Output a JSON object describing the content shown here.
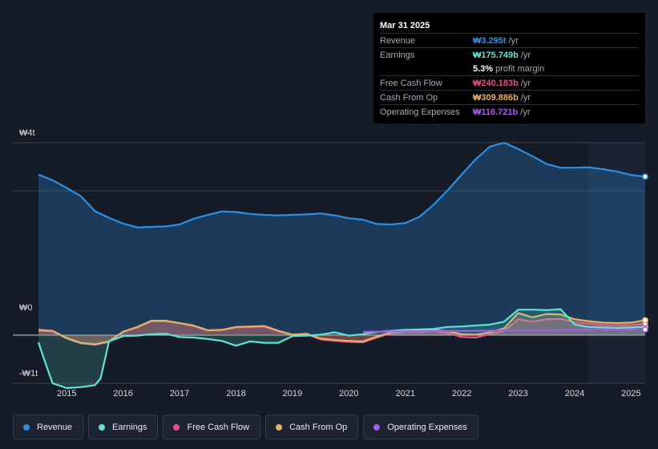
{
  "chart_data": {
    "type": "area",
    "y_ticks": [
      {
        "label": "₩4t",
        "value": 4000
      },
      {
        "label": "₩0",
        "value": 0
      },
      {
        "label": "-₩1t",
        "value": -1000
      }
    ],
    "ylim": [
      -1000,
      4000
    ],
    "xlim": [
      2014.5,
      2025.25
    ],
    "x_ticks": [
      "2015",
      "2016",
      "2017",
      "2018",
      "2019",
      "2020",
      "2021",
      "2022",
      "2023",
      "2024",
      "2025"
    ],
    "x_tick_values": [
      2015,
      2016,
      2017,
      2018,
      2019,
      2020,
      2021,
      2022,
      2023,
      2024,
      2025
    ],
    "forecast_start": 2024.25,
    "series": [
      {
        "name": "Revenue",
        "color": "#2d8fe3",
        "points": [
          [
            2014.5,
            3340
          ],
          [
            2014.75,
            3220
          ],
          [
            2015.0,
            3060
          ],
          [
            2015.25,
            2890
          ],
          [
            2015.5,
            2580
          ],
          [
            2015.75,
            2440
          ],
          [
            2016.0,
            2320
          ],
          [
            2016.25,
            2240
          ],
          [
            2016.5,
            2250
          ],
          [
            2016.75,
            2260
          ],
          [
            2017.0,
            2300
          ],
          [
            2017.25,
            2420
          ],
          [
            2017.5,
            2500
          ],
          [
            2017.75,
            2570
          ],
          [
            2018.0,
            2560
          ],
          [
            2018.25,
            2520
          ],
          [
            2018.5,
            2500
          ],
          [
            2018.75,
            2490
          ],
          [
            2019.0,
            2500
          ],
          [
            2019.25,
            2510
          ],
          [
            2019.5,
            2530
          ],
          [
            2019.75,
            2490
          ],
          [
            2020.0,
            2430
          ],
          [
            2020.25,
            2400
          ],
          [
            2020.5,
            2310
          ],
          [
            2020.75,
            2300
          ],
          [
            2021.0,
            2330
          ],
          [
            2021.25,
            2460
          ],
          [
            2021.5,
            2710
          ],
          [
            2021.75,
            3010
          ],
          [
            2022.0,
            3340
          ],
          [
            2022.25,
            3660
          ],
          [
            2022.5,
            3920
          ],
          [
            2022.75,
            4000
          ],
          [
            2023.0,
            3870
          ],
          [
            2023.25,
            3720
          ],
          [
            2023.5,
            3560
          ],
          [
            2023.75,
            3480
          ],
          [
            2024.0,
            3480
          ],
          [
            2024.25,
            3490
          ],
          [
            2024.5,
            3450
          ],
          [
            2024.75,
            3400
          ],
          [
            2025.0,
            3330
          ],
          [
            2025.25,
            3295
          ]
        ]
      },
      {
        "name": "Earnings",
        "color": "#5fe3d3",
        "points": [
          [
            2014.5,
            -150
          ],
          [
            2014.6,
            -500
          ],
          [
            2014.75,
            -1000
          ],
          [
            2015.0,
            -1100
          ],
          [
            2015.25,
            -1080
          ],
          [
            2015.5,
            -1040
          ],
          [
            2015.6,
            -900
          ],
          [
            2015.75,
            -130
          ],
          [
            2016.0,
            -20
          ],
          [
            2016.25,
            -10
          ],
          [
            2016.5,
            20
          ],
          [
            2016.75,
            30
          ],
          [
            2017.0,
            -40
          ],
          [
            2017.25,
            -50
          ],
          [
            2017.5,
            -80
          ],
          [
            2017.75,
            -120
          ],
          [
            2018.0,
            -220
          ],
          [
            2018.25,
            -130
          ],
          [
            2018.5,
            -160
          ],
          [
            2018.75,
            -160
          ],
          [
            2019.0,
            -20
          ],
          [
            2019.25,
            -10
          ],
          [
            2019.5,
            10
          ],
          [
            2019.75,
            60
          ],
          [
            2020.0,
            -10
          ],
          [
            2020.25,
            20
          ],
          [
            2020.5,
            70
          ],
          [
            2020.75,
            90
          ],
          [
            2021.0,
            110
          ],
          [
            2021.25,
            120
          ],
          [
            2021.5,
            130
          ],
          [
            2021.75,
            170
          ],
          [
            2022.0,
            180
          ],
          [
            2022.25,
            200
          ],
          [
            2022.5,
            220
          ],
          [
            2022.75,
            280
          ],
          [
            2023.0,
            530
          ],
          [
            2023.25,
            530
          ],
          [
            2023.5,
            520
          ],
          [
            2023.75,
            540
          ],
          [
            2024.0,
            220
          ],
          [
            2024.25,
            170
          ],
          [
            2024.5,
            160
          ],
          [
            2024.75,
            150
          ],
          [
            2025.0,
            160
          ],
          [
            2025.25,
            175.749
          ]
        ]
      },
      {
        "name": "Free Cash Flow",
        "color": "#e0508b",
        "points": [
          [
            2014.5,
            90
          ],
          [
            2014.75,
            80
          ],
          [
            2015.0,
            -70
          ],
          [
            2015.25,
            -170
          ],
          [
            2015.5,
            -200
          ],
          [
            2015.75,
            -140
          ],
          [
            2016.0,
            70
          ],
          [
            2016.25,
            160
          ],
          [
            2016.5,
            290
          ],
          [
            2016.75,
            290
          ],
          [
            2017.0,
            250
          ],
          [
            2017.25,
            190
          ],
          [
            2017.5,
            100
          ],
          [
            2017.75,
            110
          ],
          [
            2018.0,
            160
          ],
          [
            2018.25,
            170
          ],
          [
            2018.5,
            180
          ],
          [
            2018.75,
            80
          ],
          [
            2019.0,
            10
          ],
          [
            2019.25,
            20
          ],
          [
            2019.5,
            -90
          ],
          [
            2019.75,
            -120
          ],
          [
            2020.0,
            -140
          ],
          [
            2020.25,
            -150
          ],
          [
            2020.5,
            -50
          ],
          [
            2020.75,
            40
          ],
          [
            2021.0,
            60
          ],
          [
            2021.25,
            60
          ],
          [
            2021.5,
            80
          ],
          [
            2021.75,
            40
          ],
          [
            2022.0,
            -40
          ],
          [
            2022.25,
            -50
          ],
          [
            2022.5,
            20
          ],
          [
            2022.75,
            80
          ],
          [
            2023.0,
            330
          ],
          [
            2023.25,
            280
          ],
          [
            2023.5,
            330
          ],
          [
            2023.75,
            340
          ],
          [
            2024.0,
            270
          ],
          [
            2024.25,
            240
          ],
          [
            2024.5,
            210
          ],
          [
            2024.75,
            200
          ],
          [
            2025.0,
            210
          ],
          [
            2025.25,
            240.183
          ]
        ]
      },
      {
        "name": "Cash From Op",
        "color": "#e8b067",
        "points": [
          [
            2014.5,
            110
          ],
          [
            2014.75,
            90
          ],
          [
            2015.0,
            -60
          ],
          [
            2015.25,
            -160
          ],
          [
            2015.5,
            -190
          ],
          [
            2015.75,
            -130
          ],
          [
            2016.0,
            70
          ],
          [
            2016.25,
            170
          ],
          [
            2016.5,
            300
          ],
          [
            2016.75,
            300
          ],
          [
            2017.0,
            250
          ],
          [
            2017.25,
            200
          ],
          [
            2017.5,
            100
          ],
          [
            2017.75,
            110
          ],
          [
            2018.0,
            170
          ],
          [
            2018.25,
            180
          ],
          [
            2018.5,
            190
          ],
          [
            2018.75,
            90
          ],
          [
            2019.0,
            10
          ],
          [
            2019.25,
            30
          ],
          [
            2019.5,
            -70
          ],
          [
            2019.75,
            -100
          ],
          [
            2020.0,
            -120
          ],
          [
            2020.25,
            -130
          ],
          [
            2020.5,
            -30
          ],
          [
            2020.75,
            60
          ],
          [
            2021.0,
            80
          ],
          [
            2021.25,
            100
          ],
          [
            2021.5,
            110
          ],
          [
            2021.75,
            80
          ],
          [
            2022.0,
            20
          ],
          [
            2022.25,
            10
          ],
          [
            2022.5,
            60
          ],
          [
            2022.75,
            140
          ],
          [
            2023.0,
            460
          ],
          [
            2023.25,
            370
          ],
          [
            2023.5,
            440
          ],
          [
            2023.75,
            430
          ],
          [
            2024.0,
            330
          ],
          [
            2024.25,
            290
          ],
          [
            2024.5,
            260
          ],
          [
            2024.75,
            250
          ],
          [
            2025.0,
            260
          ],
          [
            2025.25,
            309.886
          ]
        ]
      },
      {
        "name": "Operating Expenses",
        "color": "#a35be8",
        "points": [
          [
            2020.25,
            70
          ],
          [
            2020.75,
            75
          ],
          [
            2021.25,
            80
          ],
          [
            2021.75,
            85
          ],
          [
            2022.25,
            90
          ],
          [
            2022.75,
            95
          ],
          [
            2023.25,
            100
          ],
          [
            2023.75,
            105
          ],
          [
            2024.25,
            110
          ],
          [
            2024.75,
            114
          ],
          [
            2025.25,
            116.721
          ]
        ]
      }
    ]
  },
  "tooltip": {
    "date": "Mar 31 2025",
    "rows": [
      {
        "label": "Revenue",
        "value": "₩3.295t",
        "unit": "/yr",
        "color": "#2d8fe3"
      },
      {
        "label": "Earnings",
        "value": "₩175.749b",
        "unit": "/yr",
        "color": "#5fe3d3"
      },
      {
        "label": "",
        "value": "5.3%",
        "unit": "profit margin",
        "color": "#ffffff"
      },
      {
        "label": "Free Cash Flow",
        "value": "₩240.183b",
        "unit": "/yr",
        "color": "#e0508b"
      },
      {
        "label": "Cash From Op",
        "value": "₩309.886b",
        "unit": "/yr",
        "color": "#e8b067"
      },
      {
        "label": "Operating Expenses",
        "value": "₩116.721b",
        "unit": "/yr",
        "color": "#a35be8"
      }
    ]
  },
  "legend": [
    {
      "label": "Revenue",
      "color": "#2d8fe3"
    },
    {
      "label": "Earnings",
      "color": "#5fe3d3"
    },
    {
      "label": "Free Cash Flow",
      "color": "#e0508b"
    },
    {
      "label": "Cash From Op",
      "color": "#e8b067"
    },
    {
      "label": "Operating Expenses",
      "color": "#a35be8"
    }
  ]
}
